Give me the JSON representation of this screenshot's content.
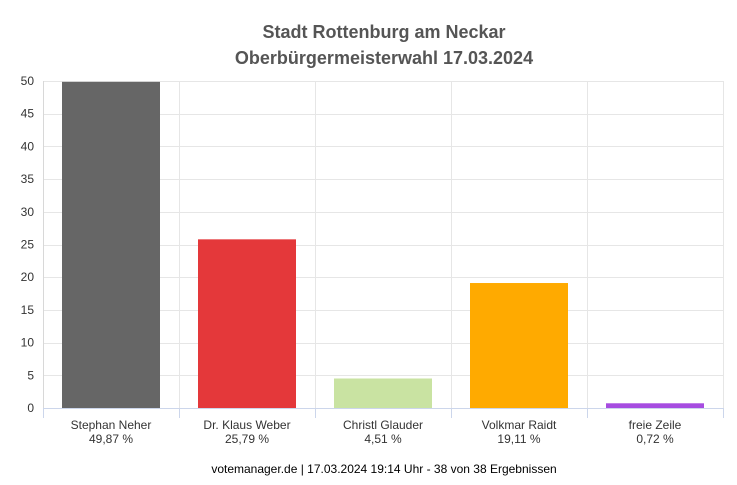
{
  "chart_data": {
    "type": "bar",
    "title": [
      "Stadt Rottenburg am Neckar",
      "Oberbürgermeisterwahl 17.03.2024"
    ],
    "categories": [
      "Stephan Neher",
      "Dr. Klaus Weber",
      "Christl Glauder",
      "Volkmar Raidt",
      "freie Zeile"
    ],
    "values": [
      49.87,
      25.79,
      4.51,
      19.11,
      0.72
    ],
    "value_labels": [
      "49,87 %",
      "25,79 %",
      "4,51 %",
      "19,11 %",
      "0,72 %"
    ],
    "colors": [
      "#666666",
      "#e4383a",
      "#c9e3a2",
      "#ffaa00",
      "#a64ce0"
    ],
    "ylim": [
      0,
      50
    ],
    "yticks": [
      0,
      5,
      10,
      15,
      20,
      25,
      30,
      35,
      40,
      45,
      50
    ],
    "grid": true,
    "xlabel": "",
    "ylabel": ""
  },
  "footer": "votemanager.de | 17.03.2024 19:14 Uhr - 38 von 38 Ergebnissen"
}
